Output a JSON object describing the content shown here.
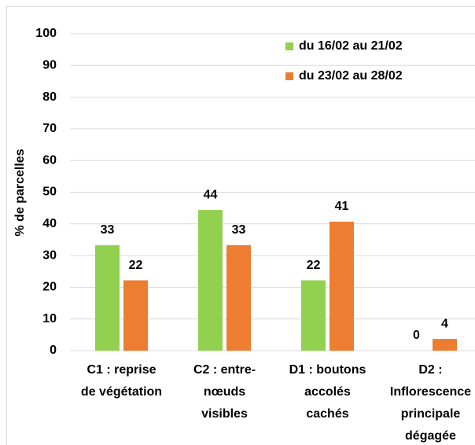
{
  "chart_data": {
    "type": "bar",
    "y_label": "% de parcelles",
    "categories": [
      [
        "C1 : reprise",
        "de végétation"
      ],
      [
        "C2 : entre-",
        "nœuds",
        "visibles"
      ],
      [
        "D1 : boutons",
        "accolés",
        "cachés"
      ],
      [
        "D2 :",
        "Inflorescence",
        "principale",
        "dégagée"
      ]
    ],
    "series": [
      {
        "name": "du 16/02 au 21/02",
        "color": "#92d050",
        "values": [
          33.3,
          44.4,
          22.2,
          0
        ],
        "value_labels": [
          "33",
          "44",
          "22",
          "0"
        ]
      },
      {
        "name": "du 23/02 au 28/02",
        "color": "#ed7d31",
        "values": [
          22.2,
          33.3,
          40.7,
          3.7
        ],
        "value_labels": [
          "22",
          "33",
          "41",
          "4"
        ]
      }
    ],
    "ylim": [
      0,
      100
    ],
    "yticks": [
      0,
      10,
      20,
      30,
      40,
      50,
      60,
      70,
      80,
      90,
      100
    ],
    "grid": true
  }
}
